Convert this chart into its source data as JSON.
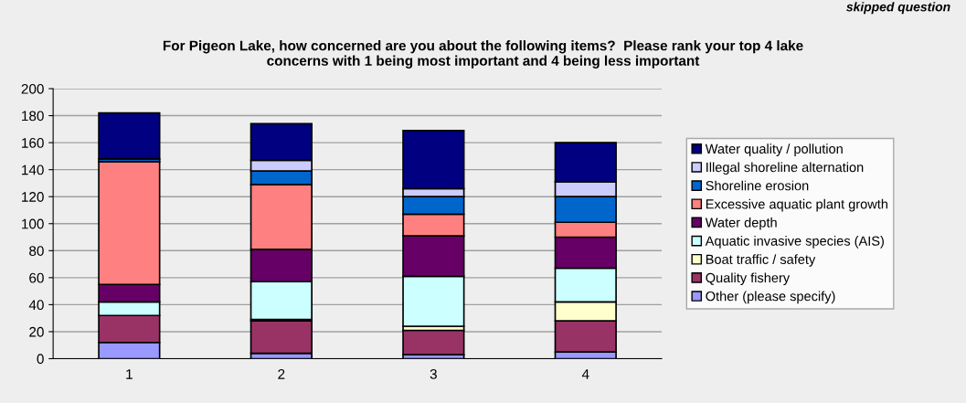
{
  "chart_data": {
    "type": "bar",
    "stacked": true,
    "title": "For Pigeon Lake, how concerned are you about the following items?  Please rank your top 4 lake\nconcerns with 1 being most important and 4 being less important",
    "annotations": [
      "skipped question"
    ],
    "categories": [
      "1",
      "2",
      "3",
      "4"
    ],
    "series": [
      {
        "name": "Other (please specify)",
        "color": "#9999ff",
        "values": [
          12,
          4,
          3,
          5
        ]
      },
      {
        "name": "Quality fishery",
        "color": "#993366",
        "values": [
          20,
          24,
          18,
          23
        ]
      },
      {
        "name": "Boat traffic / safety",
        "color": "#ffffcc",
        "values": [
          0,
          1,
          3,
          14
        ]
      },
      {
        "name": "Aquatic invasive species (AIS)",
        "color": "#ccffff",
        "values": [
          10,
          28,
          37,
          25
        ]
      },
      {
        "name": "Water depth",
        "color": "#660066",
        "values": [
          13,
          24,
          30,
          23
        ]
      },
      {
        "name": "Excessive aquatic plant growth",
        "color": "#ff8080",
        "values": [
          91,
          48,
          16,
          11
        ]
      },
      {
        "name": "Shoreline erosion",
        "color": "#0066cc",
        "values": [
          2,
          10,
          13,
          19
        ]
      },
      {
        "name": "Illegal shoreline alternation",
        "color": "#ccccff",
        "values": [
          null,
          8,
          6,
          11
        ]
      },
      {
        "name": "Water quality / pollution",
        "color": "#000080",
        "values": [
          34,
          27,
          43,
          29
        ]
      }
    ],
    "ylim": [
      0,
      200
    ],
    "yticks": [
      0,
      20,
      40,
      60,
      80,
      100,
      120,
      140,
      160,
      180,
      200
    ],
    "grid": "y",
    "legend": "right"
  }
}
